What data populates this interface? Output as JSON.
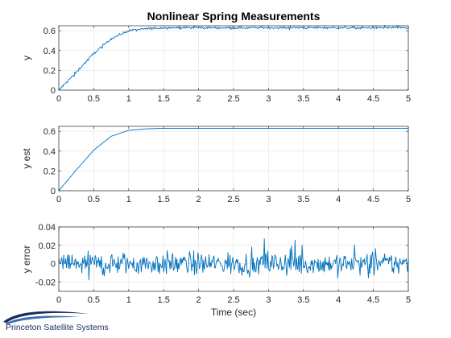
{
  "figure_title": "Nonlinear Spring Measurements",
  "logo_text": "Princeton Satellite Systems",
  "colors": {
    "line": "#0072BD",
    "axis": "#262626",
    "grid": "#e6e6e6",
    "logo": "#1b2a5c"
  },
  "chart_data": [
    {
      "type": "line",
      "title": "Nonlinear Spring Measurements",
      "xlabel": "",
      "ylabel": "y",
      "xlim": [
        0,
        5
      ],
      "ylim": [
        0,
        0.65
      ],
      "xticks": [
        "0",
        "0.5",
        "1",
        "1.5",
        "2",
        "2.5",
        "3",
        "3.5",
        "4",
        "4.5",
        "5"
      ],
      "yticks": [
        "0",
        "0.2",
        "0.4",
        "0.6"
      ],
      "grid": true,
      "series": [
        {
          "x": [
            0,
            0.25,
            0.5,
            0.75,
            1,
            1.25,
            1.5,
            2,
            2.5,
            3,
            3.5,
            4,
            4.5,
            5
          ],
          "y": [
            0,
            0.18,
            0.37,
            0.52,
            0.6,
            0.62,
            0.63,
            0.63,
            0.63,
            0.63,
            0.63,
            0.63,
            0.63,
            0.63
          ],
          "noise": 0.008
        }
      ]
    },
    {
      "type": "line",
      "title": "",
      "xlabel": "",
      "ylabel": "y est",
      "xlim": [
        0,
        5
      ],
      "ylim": [
        0,
        0.65
      ],
      "xticks": [
        "0",
        "0.5",
        "1",
        "1.5",
        "2",
        "2.5",
        "3",
        "3.5",
        "4",
        "4.5",
        "5"
      ],
      "yticks": [
        "0",
        "0.2",
        "0.4",
        "0.6"
      ],
      "grid": true,
      "series": [
        {
          "x": [
            0,
            0.25,
            0.5,
            0.75,
            1,
            1.25,
            1.5,
            2,
            2.5,
            3,
            3.5,
            4,
            4.5,
            5
          ],
          "y": [
            0,
            0.21,
            0.41,
            0.55,
            0.61,
            0.625,
            0.63,
            0.63,
            0.63,
            0.63,
            0.63,
            0.63,
            0.63,
            0.63
          ],
          "noise": 0.0
        }
      ]
    },
    {
      "type": "line",
      "title": "",
      "xlabel": "Time (sec)",
      "ylabel": "y error",
      "xlim": [
        0,
        5
      ],
      "ylim": [
        -0.03,
        0.04
      ],
      "xticks": [
        "0",
        "0.5",
        "1",
        "1.5",
        "2",
        "2.5",
        "3",
        "3.5",
        "4",
        "4.5",
        "5"
      ],
      "yticks": [
        "-0.02",
        "0",
        "0.02",
        "0.04"
      ],
      "grid": true,
      "series": [
        {
          "x": [
            0,
            5
          ],
          "y": [
            0,
            0
          ],
          "noise": 0.009
        }
      ]
    }
  ]
}
